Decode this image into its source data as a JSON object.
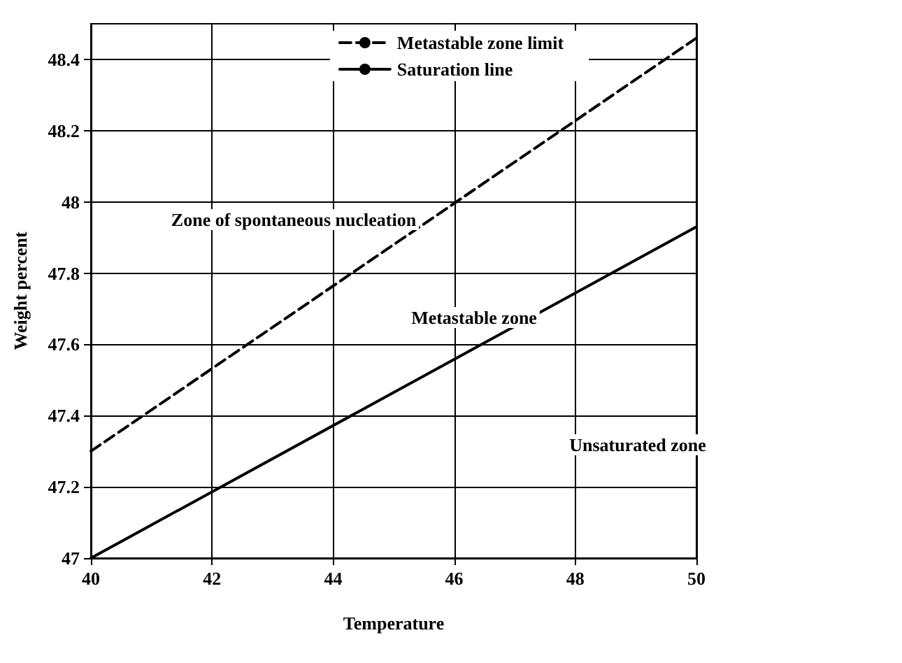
{
  "chart_data": {
    "type": "line",
    "xlabel": "Temperature",
    "ylabel": "Weight percent",
    "x": [
      40,
      50
    ],
    "series": [
      {
        "name": "Metastable zone limit",
        "color": "#000000",
        "values": [
          47.3,
          48.46
        ],
        "line_style": "dashed"
      },
      {
        "name": "Saturation line",
        "color": "#000000",
        "values": [
          47.0,
          47.93
        ],
        "line_style": "solid"
      }
    ],
    "xlim": [
      40,
      50
    ],
    "xticks": [
      40,
      42,
      44,
      46,
      48,
      50
    ],
    "ylim": [
      47,
      48.5
    ],
    "yticks": [
      47,
      47.2,
      47.4,
      47.6,
      47.8,
      48,
      48.2,
      48.4
    ],
    "grid": true,
    "legend": "top",
    "marker": "none",
    "annotations": [
      "Zone of spontaneous nucleation",
      "Metastable zone",
      "Unsaturated zone"
    ]
  }
}
